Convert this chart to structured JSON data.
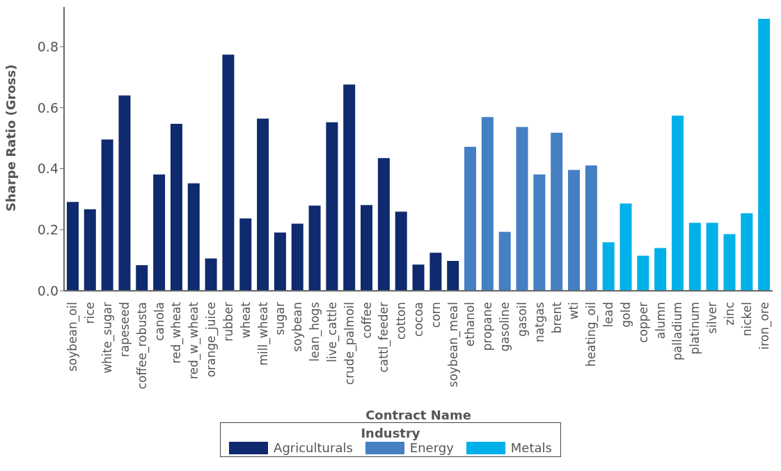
{
  "chart_data": {
    "type": "bar",
    "xlabel": "Contract Name",
    "ylabel": "Sharpe Ratio (Gross)",
    "legend_title": "Industry",
    "legend": "bottom",
    "grid": false,
    "categories": [
      "soybean_oil",
      "rice",
      "white_sugar",
      "rapeseed",
      "coffee_robusta",
      "canola",
      "red_wheat",
      "red_w_wheat",
      "orange_juice",
      "rubber",
      "wheat",
      "mill_wheat",
      "sugar",
      "soybean",
      "lean_hogs",
      "live_cattle",
      "crude_palmoil",
      "coffee",
      "cattl_feeder",
      "cotton",
      "cocoa",
      "corn",
      "soybean_meal",
      "ethanol",
      "propane",
      "gasoline",
      "gasoil",
      "natgas",
      "brent",
      "wti",
      "heating_oil",
      "lead",
      "gold",
      "copper",
      "alumn",
      "palladium",
      "platinum",
      "silver",
      "zinc",
      "nickel",
      "iron_ore"
    ],
    "series": [
      {
        "name": "Agriculturals",
        "color": "#0f2a6e",
        "values": [
          0.291,
          0.267,
          0.496,
          0.64,
          0.084,
          0.381,
          0.547,
          0.352,
          0.106,
          0.774,
          0.237,
          0.564,
          0.191,
          0.22,
          0.279,
          0.552,
          0.676,
          0.281,
          0.435,
          0.259,
          0.086,
          0.125,
          0.098,
          null,
          null,
          null,
          null,
          null,
          null,
          null,
          null,
          null,
          null,
          null,
          null,
          null,
          null,
          null,
          null,
          null,
          null
        ]
      },
      {
        "name": "Energy",
        "color": "#4480c2",
        "values": [
          null,
          null,
          null,
          null,
          null,
          null,
          null,
          null,
          null,
          null,
          null,
          null,
          null,
          null,
          null,
          null,
          null,
          null,
          null,
          null,
          null,
          null,
          null,
          0.472,
          0.569,
          0.193,
          0.537,
          0.381,
          0.518,
          0.396,
          0.411,
          null,
          null,
          null,
          null,
          null,
          null,
          null,
          null,
          null,
          null
        ]
      },
      {
        "name": "Metals",
        "color": "#00b0e8",
        "values": [
          null,
          null,
          null,
          null,
          null,
          null,
          null,
          null,
          null,
          null,
          null,
          null,
          null,
          null,
          null,
          null,
          null,
          null,
          null,
          null,
          null,
          null,
          null,
          null,
          null,
          null,
          null,
          null,
          null,
          null,
          null,
          0.159,
          0.286,
          0.115,
          0.14,
          0.574,
          0.223,
          0.223,
          0.186,
          0.254,
          0.891
        ]
      }
    ],
    "ylim": [
      0,
      0.93
    ],
    "yticks": [
      {
        "value": 0,
        "label": "0.0"
      },
      0.2,
      0.4,
      0.6,
      0.8
    ]
  }
}
